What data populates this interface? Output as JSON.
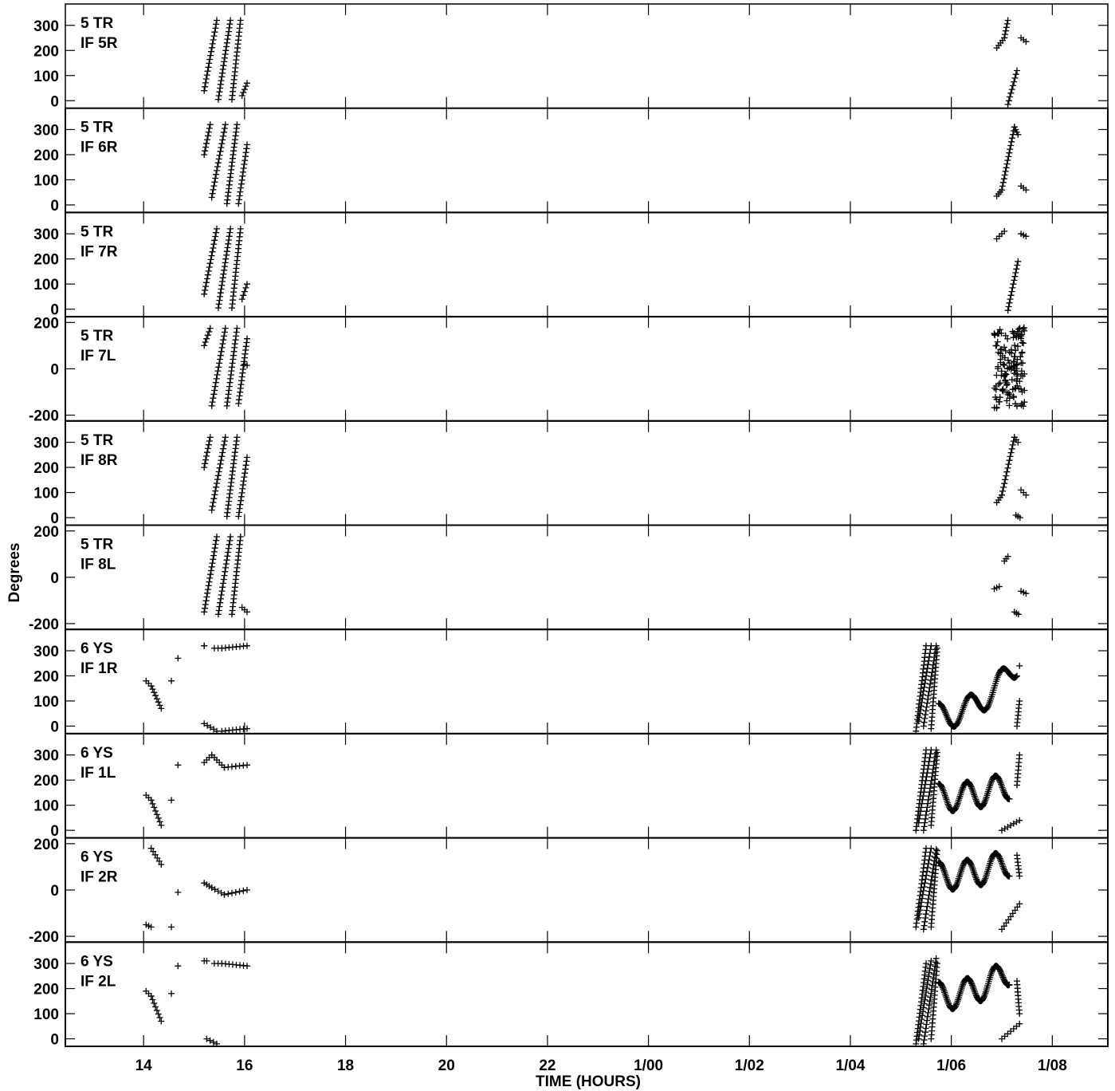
{
  "chart_data": {
    "type": "scatter",
    "marker": "+",
    "xlabel": "TIME (HOURS)",
    "ylabel": "Degrees",
    "x_ticks": [
      {
        "h": 14,
        "label": "14"
      },
      {
        "h": 16,
        "label": "16"
      },
      {
        "h": 18,
        "label": "18"
      },
      {
        "h": 20,
        "label": "20"
      },
      {
        "h": 22,
        "label": "22"
      },
      {
        "h": 24,
        "label": "1/00"
      },
      {
        "h": 26,
        "label": "1/02"
      },
      {
        "h": 28,
        "label": "1/04"
      },
      {
        "h": 30,
        "label": "1/06"
      },
      {
        "h": 32,
        "label": "1/08"
      }
    ],
    "xlim": [
      12.45,
      33.1
    ],
    "panels": [
      {
        "line1": "5 TR",
        "line2": "IF 5R",
        "ylim": [
          -30,
          385
        ],
        "yticks": [
          0,
          100,
          200,
          300
        ],
        "segments": [
          [
            [
              15.2,
              40
            ],
            [
              15.45,
              320
            ]
          ],
          [
            [
              15.48,
              5
            ],
            [
              15.72,
              320
            ]
          ],
          [
            [
              15.75,
              5
            ],
            [
              15.92,
              320
            ]
          ],
          [
            [
              15.95,
              20
            ],
            [
              16.05,
              70
            ]
          ],
          [
            [
              30.9,
              210
            ],
            [
              31.05,
              250
            ]
          ],
          [
            [
              31.05,
              250
            ],
            [
              31.12,
              320
            ]
          ],
          [
            [
              31.12,
              -15
            ],
            [
              31.3,
              120
            ]
          ],
          [
            [
              31.38,
              250
            ],
            [
              31.48,
              235
            ]
          ]
        ]
      },
      {
        "line1": "5 TR",
        "line2": "IF 6R",
        "ylim": [
          -30,
          385
        ],
        "yticks": [
          0,
          100,
          200,
          300
        ],
        "segments": [
          [
            [
              15.2,
              200
            ],
            [
              15.32,
              320
            ]
          ],
          [
            [
              15.35,
              30
            ],
            [
              15.62,
              320
            ]
          ],
          [
            [
              15.65,
              5
            ],
            [
              15.85,
              320
            ]
          ],
          [
            [
              15.88,
              5
            ],
            [
              16.05,
              240
            ]
          ],
          [
            [
              30.9,
              35
            ],
            [
              31.0,
              60
            ]
          ],
          [
            [
              31.0,
              60
            ],
            [
              31.25,
              310
            ]
          ],
          [
            [
              31.25,
              310
            ],
            [
              31.32,
              280
            ]
          ],
          [
            [
              31.38,
              75
            ],
            [
              31.48,
              60
            ]
          ]
        ]
      },
      {
        "line1": "5 TR",
        "line2": "IF 7R",
        "ylim": [
          -30,
          385
        ],
        "yticks": [
          0,
          100,
          200,
          300
        ],
        "segments": [
          [
            [
              15.2,
              60
            ],
            [
              15.45,
              320
            ]
          ],
          [
            [
              15.48,
              5
            ],
            [
              15.72,
              320
            ]
          ],
          [
            [
              15.75,
              5
            ],
            [
              15.92,
              320
            ]
          ],
          [
            [
              15.95,
              40
            ],
            [
              16.05,
              100
            ]
          ],
          [
            [
              30.9,
              280
            ],
            [
              31.05,
              310
            ]
          ],
          [
            [
              31.12,
              -5
            ],
            [
              31.32,
              190
            ]
          ],
          [
            [
              31.38,
              300
            ],
            [
              31.48,
              290
            ]
          ]
        ]
      },
      {
        "line1": "5 TR",
        "line2": "IF 7L",
        "ylim": [
          -225,
          225
        ],
        "yticks": [
          -200,
          0,
          200
        ],
        "segments": [
          [
            [
              15.2,
              100
            ],
            [
              15.32,
              175
            ]
          ],
          [
            [
              15.35,
              -160
            ],
            [
              15.62,
              175
            ]
          ],
          [
            [
              15.65,
              -160
            ],
            [
              15.85,
              175
            ]
          ],
          [
            [
              15.88,
              -150
            ],
            [
              16.05,
              130
            ]
          ],
          [
            [
              16.0,
              20
            ],
            [
              16.05,
              15
            ]
          ]
        ],
        "clouds": [
          {
            "x": [
              30.85,
              31.45
            ],
            "y": [
              -170,
              180
            ],
            "n": 140
          }
        ]
      },
      {
        "line1": "5 TR",
        "line2": "IF 8R",
        "ylim": [
          -30,
          385
        ],
        "yticks": [
          0,
          100,
          200,
          300
        ],
        "segments": [
          [
            [
              15.2,
              200
            ],
            [
              15.32,
              320
            ]
          ],
          [
            [
              15.35,
              30
            ],
            [
              15.62,
              320
            ]
          ],
          [
            [
              15.65,
              5
            ],
            [
              15.85,
              320
            ]
          ],
          [
            [
              15.88,
              5
            ],
            [
              16.05,
              240
            ]
          ],
          [
            [
              30.9,
              60
            ],
            [
              31.0,
              90
            ]
          ],
          [
            [
              31.0,
              90
            ],
            [
              31.25,
              320
            ]
          ],
          [
            [
              31.25,
              320
            ],
            [
              31.32,
              300
            ]
          ],
          [
            [
              31.38,
              110
            ],
            [
              31.48,
              90
            ]
          ],
          [
            [
              31.28,
              10
            ],
            [
              31.36,
              0
            ]
          ]
        ]
      },
      {
        "line1": "5 TR",
        "line2": "IF 8L",
        "ylim": [
          -225,
          225
        ],
        "yticks": [
          -200,
          0,
          200
        ],
        "segments": [
          [
            [
              15.2,
              -150
            ],
            [
              15.45,
              175
            ]
          ],
          [
            [
              15.48,
              -160
            ],
            [
              15.72,
              175
            ]
          ],
          [
            [
              15.75,
              -160
            ],
            [
              15.92,
              175
            ]
          ],
          [
            [
              15.95,
              -130
            ],
            [
              16.05,
              -150
            ]
          ],
          [
            [
              30.85,
              -50
            ],
            [
              30.95,
              -40
            ]
          ],
          [
            [
              31.05,
              70
            ],
            [
              31.12,
              90
            ]
          ],
          [
            [
              31.25,
              -150
            ],
            [
              31.33,
              -160
            ]
          ],
          [
            [
              31.38,
              -60
            ],
            [
              31.48,
              -70
            ]
          ]
        ]
      },
      {
        "line1": "6 YS",
        "line2": "IF 1R",
        "ylim": [
          -30,
          385
        ],
        "yticks": [
          0,
          100,
          200,
          300
        ],
        "segments": [
          [
            [
              14.05,
              180
            ],
            [
              14.15,
              160
            ]
          ],
          [
            [
              14.15,
              160
            ],
            [
              14.35,
              70
            ]
          ],
          [
            [
              15.2,
              320
            ],
            [
              15.2,
              320
            ]
          ],
          [
            [
              15.2,
              10
            ],
            [
              15.45,
              -20
            ]
          ],
          [
            [
              15.4,
              310
            ],
            [
              15.55,
              310
            ]
          ],
          [
            [
              15.55,
              310
            ],
            [
              16.05,
              320
            ]
          ],
          [
            [
              15.55,
              -20
            ],
            [
              16.05,
              -10
            ]
          ],
          [
            [
              29.3,
              -20
            ],
            [
              29.5,
              320
            ]
          ],
          [
            [
              29.35,
              20
            ],
            [
              29.6,
              320
            ]
          ],
          [
            [
              29.45,
              0
            ],
            [
              29.7,
              320
            ]
          ],
          [
            [
              29.6,
              -10
            ],
            [
              29.72,
              310
            ]
          ],
          [
            [
              31.3,
              0
            ],
            [
              31.35,
              100
            ]
          ]
        ],
        "points": [
          [
            14.55,
            180
          ],
          [
            14.68,
            270
          ],
          [
            31.35,
            240
          ]
        ],
        "curve": {
          "x0": 29.75,
          "x1": 31.3,
          "base": 40,
          "amp": 50,
          "cycles": 2.5,
          "trend": 250
        }
      },
      {
        "line1": "6 YS",
        "line2": "IF 1L",
        "ylim": [
          -30,
          385
        ],
        "yticks": [
          0,
          100,
          200,
          300
        ],
        "segments": [
          [
            [
              14.05,
              140
            ],
            [
              14.15,
              120
            ]
          ],
          [
            [
              14.15,
              120
            ],
            [
              14.35,
              20
            ]
          ],
          [
            [
              15.2,
              270
            ],
            [
              15.35,
              300
            ]
          ],
          [
            [
              15.35,
              300
            ],
            [
              15.6,
              250
            ]
          ],
          [
            [
              15.6,
              250
            ],
            [
              16.05,
              260
            ]
          ],
          [
            [
              29.3,
              0
            ],
            [
              29.5,
              320
            ]
          ],
          [
            [
              29.35,
              30
            ],
            [
              29.6,
              320
            ]
          ],
          [
            [
              29.45,
              0
            ],
            [
              29.7,
              320
            ]
          ],
          [
            [
              29.6,
              20
            ],
            [
              29.72,
              310
            ]
          ],
          [
            [
              31.0,
              0
            ],
            [
              31.35,
              40
            ]
          ],
          [
            [
              31.3,
              180
            ],
            [
              31.35,
              300
            ]
          ]
        ],
        "points": [
          [
            14.55,
            120
          ],
          [
            14.68,
            260
          ]
        ],
        "curve": {
          "x0": 29.75,
          "x1": 31.15,
          "base": 130,
          "amp": 55,
          "cycles": 2.5,
          "trend": 180
        }
      },
      {
        "line1": "6 YS",
        "line2": "IF 2R",
        "ylim": [
          -225,
          225
        ],
        "yticks": [
          -200,
          0,
          200
        ],
        "segments": [
          [
            [
              14.05,
              -150
            ],
            [
              14.15,
              -160
            ]
          ],
          [
            [
              14.15,
              180
            ],
            [
              14.35,
              110
            ]
          ],
          [
            [
              15.2,
              30
            ],
            [
              15.35,
              10
            ]
          ],
          [
            [
              15.35,
              10
            ],
            [
              15.6,
              -20
            ]
          ],
          [
            [
              15.6,
              -20
            ],
            [
              16.05,
              0
            ]
          ],
          [
            [
              29.3,
              -160
            ],
            [
              29.5,
              180
            ]
          ],
          [
            [
              29.35,
              -120
            ],
            [
              29.6,
              180
            ]
          ],
          [
            [
              29.45,
              -170
            ],
            [
              29.7,
              175
            ]
          ],
          [
            [
              29.6,
              -160
            ],
            [
              29.72,
              170
            ]
          ],
          [
            [
              31.0,
              -170
            ],
            [
              31.35,
              -60
            ]
          ],
          [
            [
              31.3,
              150
            ],
            [
              31.35,
              60
            ]
          ]
        ],
        "points": [
          [
            14.55,
            -160
          ],
          [
            14.68,
            -10
          ]
        ],
        "curve": {
          "x0": 29.75,
          "x1": 31.15,
          "base": 60,
          "amp": 60,
          "cycles": 2.5,
          "trend": 120
        }
      },
      {
        "line1": "6 YS",
        "line2": "IF 2L",
        "ylim": [
          -30,
          385
        ],
        "yticks": [
          0,
          100,
          200,
          300
        ],
        "segments": [
          [
            [
              14.05,
              190
            ],
            [
              14.15,
              170
            ]
          ],
          [
            [
              14.15,
              170
            ],
            [
              14.35,
              70
            ]
          ],
          [
            [
              15.2,
              310
            ],
            [
              15.25,
              310
            ]
          ],
          [
            [
              15.25,
              0
            ],
            [
              15.45,
              -20
            ]
          ],
          [
            [
              15.4,
              300
            ],
            [
              15.55,
              300
            ]
          ],
          [
            [
              15.55,
              300
            ],
            [
              16.05,
              290
            ]
          ],
          [
            [
              29.3,
              -20
            ],
            [
              29.5,
              300
            ]
          ],
          [
            [
              29.35,
              0
            ],
            [
              29.6,
              310
            ]
          ],
          [
            [
              29.45,
              -20
            ],
            [
              29.7,
              320
            ]
          ],
          [
            [
              29.6,
              0
            ],
            [
              29.72,
              300
            ]
          ],
          [
            [
              31.0,
              0
            ],
            [
              31.35,
              60
            ]
          ],
          [
            [
              31.3,
              230
            ],
            [
              31.35,
              100
            ]
          ]
        ],
        "points": [
          [
            14.55,
            180
          ],
          [
            14.68,
            290
          ]
        ],
        "curve": {
          "x0": 29.75,
          "x1": 31.15,
          "base": 170,
          "amp": 55,
          "cycles": 2.5,
          "trend": 270
        }
      }
    ]
  }
}
